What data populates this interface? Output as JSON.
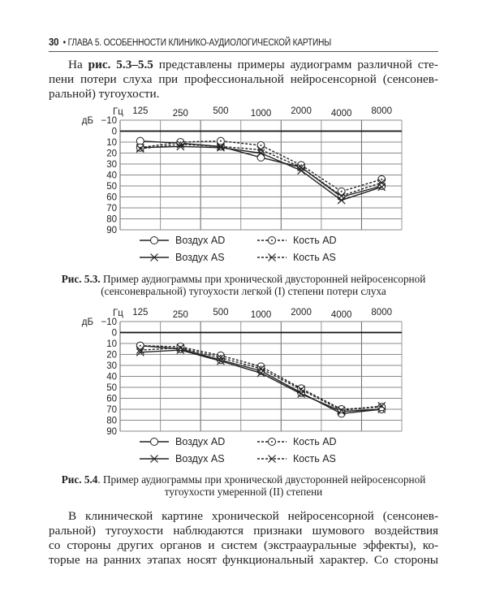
{
  "header": {
    "page_number": "30",
    "bullet": "•",
    "chapter": "ГЛАВА 5. ОСОБЕННОСТИ КЛИНИКО-АУДИОЛОГИЧЕСКОЙ КАРТИНЫ"
  },
  "intro": {
    "lead": "На ",
    "ref": "рис. 5.3–5.5",
    "lines": [
      " представлены примеры аудиограмм различной сте-",
      "пени потери слуха при профессиональной нейросенсорной (сенсонев-",
      "ральной) тугоухости."
    ]
  },
  "legend": {
    "air_ad": "Воздух AD",
    "bone_ad": "Кость AD",
    "air_as": "Воздух AS",
    "bone_as": "Кость AS"
  },
  "captions": [
    {
      "label": "Рис. 5.3.",
      "lines": [
        " Пример аудиограммы при хронической двусторонней нейросенсорной",
        "(сенсоневральной) тугоухости легкой (I) степени потери слуха"
      ]
    },
    {
      "label": "Рис. 5.4",
      "lines": [
        ". Пример аудиограммы при хронической двусторонней нейросенсорной",
        "тугоухости умеренной (II) степени"
      ]
    }
  ],
  "body_text": {
    "lines": [
      "В клинической картине хронической нейросенсорной (сенсонев-",
      "ральной) тугоухости наблюдаются признаки шумового воздействия",
      "со стороны других органов и систем (экстраауральные эффекты), ко-",
      "торые на ранних этапах носят функциональный характер. Со стороны"
    ]
  },
  "chart_data": [
    {
      "type": "line",
      "xlabel": "Гц",
      "ylabel": "дБ",
      "categories": [
        "125",
        "250",
        "500",
        "1000",
        "2000",
        "4000",
        "8000"
      ],
      "ylim": [
        -10,
        90
      ],
      "y_inverted": true,
      "yticks": [
        "−10",
        "0",
        "10",
        "20",
        "30",
        "40",
        "50",
        "60",
        "70",
        "80",
        "90"
      ],
      "grid": true,
      "series": [
        {
          "name": "Воздух AD",
          "marker": "circle",
          "style": "solid",
          "values": [
            9,
            11,
            14,
            24,
            33,
            60,
            50
          ]
        },
        {
          "name": "Воздух AS",
          "marker": "x",
          "style": "solid",
          "values": [
            15,
            14,
            15,
            20,
            36,
            63,
            51
          ]
        },
        {
          "name": "Кость AD",
          "marker": "circle-dot",
          "style": "dashed",
          "values": [
            15,
            10,
            9,
            13,
            31,
            55,
            44
          ]
        },
        {
          "name": "Кость AS",
          "marker": "x",
          "style": "dashed",
          "values": [
            16,
            12,
            14,
            17,
            33,
            59,
            47
          ]
        }
      ]
    },
    {
      "type": "line",
      "xlabel": "Гц",
      "ylabel": "дБ",
      "categories": [
        "125",
        "250",
        "500",
        "1000",
        "2000",
        "4000",
        "8000"
      ],
      "ylim": [
        -10,
        90
      ],
      "y_inverted": true,
      "yticks": [
        "−10",
        "0",
        "10",
        "20",
        "30",
        "40",
        "50",
        "60",
        "70",
        "80",
        "90"
      ],
      "grid": true,
      "series": [
        {
          "name": "Воздух AD",
          "marker": "circle",
          "style": "solid",
          "values": [
            12,
            15,
            25,
            35,
            55,
            74,
            70
          ]
        },
        {
          "name": "Воздух AS",
          "marker": "x",
          "style": "solid",
          "values": [
            18,
            16,
            26,
            37,
            56,
            72,
            70
          ]
        },
        {
          "name": "Кость AD",
          "marker": "circle-dot",
          "style": "dashed",
          "values": [
            12,
            13,
            21,
            31,
            51,
            70,
            68
          ]
        },
        {
          "name": "Кость AS",
          "marker": "x",
          "style": "dashed",
          "values": [
            16,
            14,
            23,
            33,
            52,
            71,
            67
          ]
        }
      ]
    }
  ]
}
